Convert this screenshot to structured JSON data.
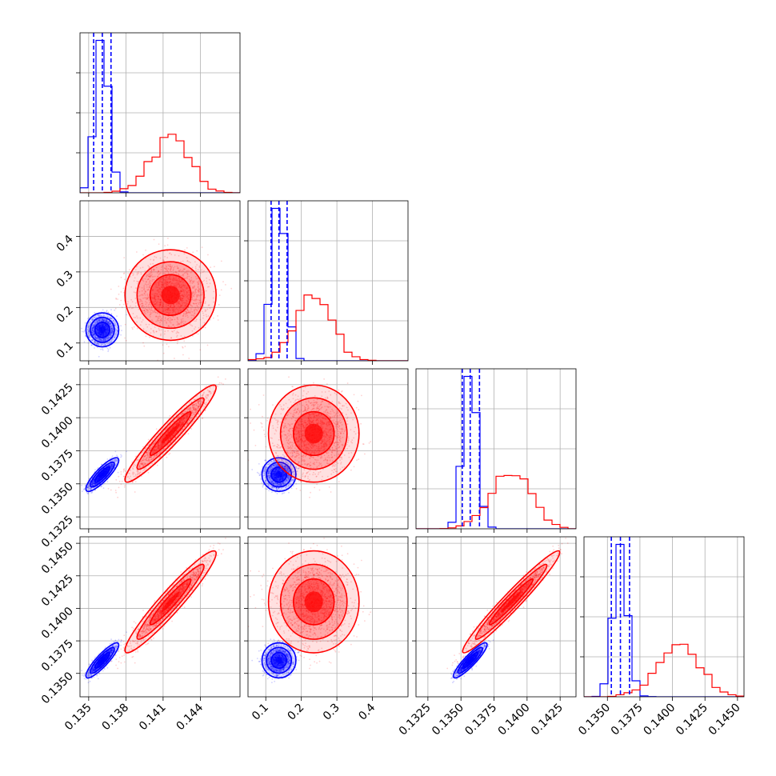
{
  "chart_data": {
    "type": "corner",
    "grid": true,
    "colors": {
      "blue": "#0000ff",
      "red": "#ff0000"
    },
    "params": [
      {
        "id": "p1",
        "range": [
          0.1343,
          0.1472
        ],
        "ticks": [
          0.135,
          0.138,
          0.141,
          0.144
        ],
        "tick_labels": [
          "0.135",
          "0.138",
          "0.141",
          "0.144"
        ]
      },
      {
        "id": "p2",
        "range": [
          0.05,
          0.5
        ],
        "ticks": [
          0.1,
          0.2,
          0.3,
          0.4
        ],
        "tick_labels": [
          "0.1",
          "0.2",
          "0.3",
          "0.4"
        ]
      },
      {
        "id": "p3",
        "range": [
          0.1316,
          0.1437
        ],
        "ticks": [
          0.1325,
          0.135,
          0.1375,
          0.14,
          0.1425
        ],
        "tick_labels": [
          "0.1325",
          "0.1350",
          "0.1375",
          "0.1400",
          "0.1425"
        ]
      },
      {
        "id": "p4",
        "range": [
          0.1332,
          0.1455
        ],
        "ticks": [
          0.135,
          0.1375,
          0.14,
          0.1425,
          0.145
        ],
        "tick_labels": [
          "0.1350",
          "0.1375",
          "0.1400",
          "0.1425",
          "0.1450"
        ]
      }
    ],
    "series": [
      {
        "color": "blue",
        "means": [
          0.1361,
          0.137,
          0.1357,
          0.136
        ],
        "sds": [
          0.00054,
          0.0195,
          0.00052,
          0.00055
        ],
        "corr": [
          [
            1,
            0,
            0.85,
            0.88
          ],
          [
            0,
            1,
            0,
            0
          ],
          [
            0.85,
            0,
            1,
            0.9
          ],
          [
            0.88,
            0,
            0.9,
            1
          ]
        ],
        "quantiles": [
          [
            0.1354,
            0.1361,
            0.1368
          ],
          [
            0.115,
            0.137,
            0.16
          ],
          [
            0.1351,
            0.1357,
            0.1364
          ],
          [
            0.1353,
            0.136,
            0.1367
          ]
        ]
      },
      {
        "color": "red",
        "means": [
          0.1416,
          0.235,
          0.1388,
          0.1405
        ],
        "sds": [
          0.0015,
          0.052,
          0.0015,
          0.0016
        ],
        "corr": [
          [
            1,
            0,
            0.95,
            0.95
          ],
          [
            0,
            1,
            0,
            0
          ],
          [
            0.95,
            0,
            1,
            0.97
          ],
          [
            0.95,
            0,
            0.97,
            1
          ]
        ]
      }
    ]
  }
}
